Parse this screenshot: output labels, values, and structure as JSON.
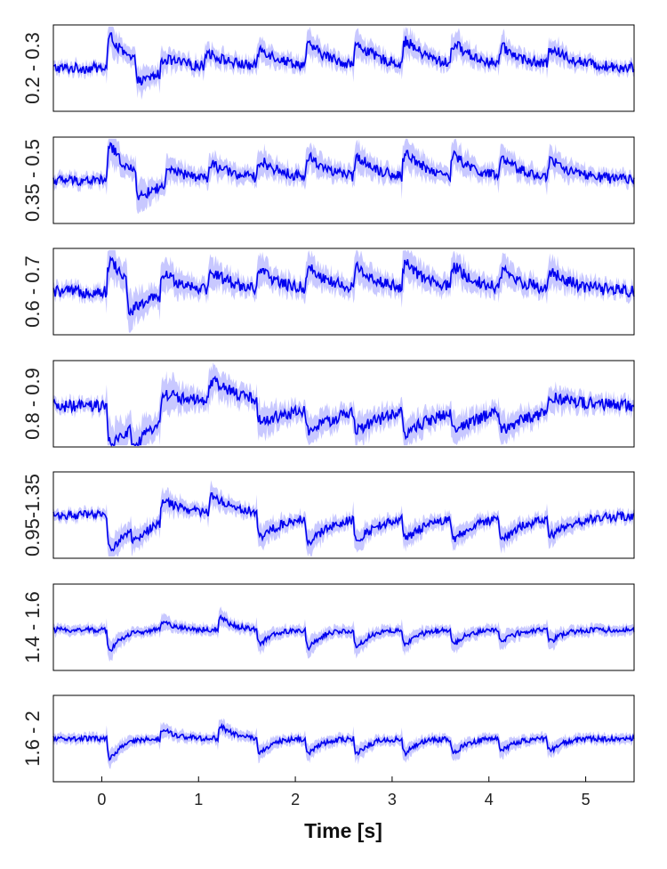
{
  "chart_data": {
    "type": "line",
    "xlabel": "Time [s]",
    "xlim": [
      -0.5,
      5.5
    ],
    "xticks": [
      "0",
      "1",
      "2",
      "3",
      "4",
      "5"
    ],
    "xtick_values": [
      0,
      1,
      2,
      3,
      4,
      5
    ],
    "grid": false,
    "line_color": "#0000ee",
    "band_color": "#c8c8ff",
    "panels": [
      {
        "label": "0.2 - 0.3",
        "baseline": 0.5,
        "events": [
          [
            0.05,
            0.5,
            6
          ],
          [
            0.35,
            -0.3,
            5
          ],
          [
            0.6,
            0.2,
            4
          ],
          [
            1.05,
            0.2,
            4
          ],
          [
            1.6,
            0.25,
            4
          ],
          [
            2.1,
            0.3,
            4
          ],
          [
            2.6,
            0.3,
            4
          ],
          [
            3.1,
            0.35,
            4
          ],
          [
            3.6,
            0.3,
            4
          ],
          [
            4.1,
            0.25,
            4
          ],
          [
            4.6,
            0.25,
            4
          ]
        ],
        "noise": 0.06,
        "band": 0.18
      },
      {
        "label": "0.35 - 0.5",
        "baseline": 0.5,
        "events": [
          [
            0.05,
            0.55,
            6
          ],
          [
            0.35,
            -0.35,
            5
          ],
          [
            0.65,
            0.2,
            4
          ],
          [
            1.1,
            0.2,
            4
          ],
          [
            1.6,
            0.25,
            4
          ],
          [
            2.1,
            0.3,
            4
          ],
          [
            2.6,
            0.3,
            4
          ],
          [
            3.1,
            0.35,
            4
          ],
          [
            3.6,
            0.3,
            4
          ],
          [
            4.1,
            0.25,
            4
          ],
          [
            4.6,
            0.25,
            4
          ]
        ],
        "noise": 0.06,
        "band": 0.2
      },
      {
        "label": "0.6 - 0.7",
        "baseline": 0.5,
        "events": [
          [
            0.05,
            0.5,
            6
          ],
          [
            0.25,
            -0.45,
            5
          ],
          [
            0.6,
            0.3,
            4
          ],
          [
            1.1,
            0.25,
            4
          ],
          [
            1.6,
            0.25,
            4
          ],
          [
            2.1,
            0.3,
            4
          ],
          [
            2.6,
            0.3,
            4
          ],
          [
            3.1,
            0.35,
            4
          ],
          [
            3.6,
            0.3,
            4
          ],
          [
            4.1,
            0.25,
            4
          ],
          [
            4.6,
            0.25,
            4
          ]
        ],
        "noise": 0.07,
        "band": 0.22
      },
      {
        "label": "0.8 - 0.9",
        "baseline": 0.47,
        "events": [
          [
            0.05,
            -0.55,
            3
          ],
          [
            0.3,
            -0.35,
            5
          ],
          [
            0.6,
            0.35,
            3
          ],
          [
            1.1,
            0.3,
            3
          ],
          [
            1.6,
            -0.3,
            3
          ],
          [
            2.1,
            -0.3,
            3
          ],
          [
            2.6,
            -0.25,
            3
          ],
          [
            3.1,
            -0.3,
            3
          ],
          [
            3.6,
            -0.25,
            3
          ],
          [
            4.1,
            -0.25,
            3
          ],
          [
            4.6,
            0.2,
            3
          ]
        ],
        "noise": 0.07,
        "band": 0.2
      },
      {
        "label": "0.95-1.35",
        "baseline": 0.5,
        "events": [
          [
            0.05,
            -0.5,
            4
          ],
          [
            0.3,
            -0.2,
            5
          ],
          [
            0.6,
            0.3,
            4
          ],
          [
            1.1,
            0.25,
            4
          ],
          [
            1.6,
            -0.35,
            4
          ],
          [
            2.1,
            -0.35,
            4
          ],
          [
            2.6,
            -0.3,
            4
          ],
          [
            3.1,
            -0.3,
            4
          ],
          [
            3.6,
            -0.3,
            4
          ],
          [
            4.1,
            -0.3,
            4
          ],
          [
            4.6,
            -0.25,
            4
          ]
        ],
        "noise": 0.05,
        "band": 0.16
      },
      {
        "label": "1.4 - 1.6",
        "baseline": 0.47,
        "events": [
          [
            0.05,
            -0.35,
            8
          ],
          [
            0.6,
            0.15,
            8
          ],
          [
            1.2,
            0.2,
            8
          ],
          [
            1.6,
            -0.25,
            8
          ],
          [
            2.1,
            -0.3,
            8
          ],
          [
            2.6,
            -0.3,
            8
          ],
          [
            3.1,
            -0.25,
            8
          ],
          [
            3.6,
            -0.25,
            8
          ],
          [
            4.1,
            -0.2,
            8
          ],
          [
            4.6,
            -0.2,
            8
          ]
        ],
        "noise": 0.03,
        "band": 0.16
      },
      {
        "label": "1.6 - 2",
        "baseline": 0.5,
        "events": [
          [
            0.05,
            -0.35,
            8
          ],
          [
            0.6,
            0.15,
            8
          ],
          [
            1.2,
            0.2,
            8
          ],
          [
            1.6,
            -0.25,
            8
          ],
          [
            2.1,
            -0.25,
            8
          ],
          [
            2.6,
            -0.25,
            8
          ],
          [
            3.1,
            -0.25,
            8
          ],
          [
            3.6,
            -0.25,
            8
          ],
          [
            4.1,
            -0.2,
            8
          ],
          [
            4.6,
            -0.2,
            8
          ]
        ],
        "noise": 0.03,
        "band": 0.15
      }
    ]
  }
}
